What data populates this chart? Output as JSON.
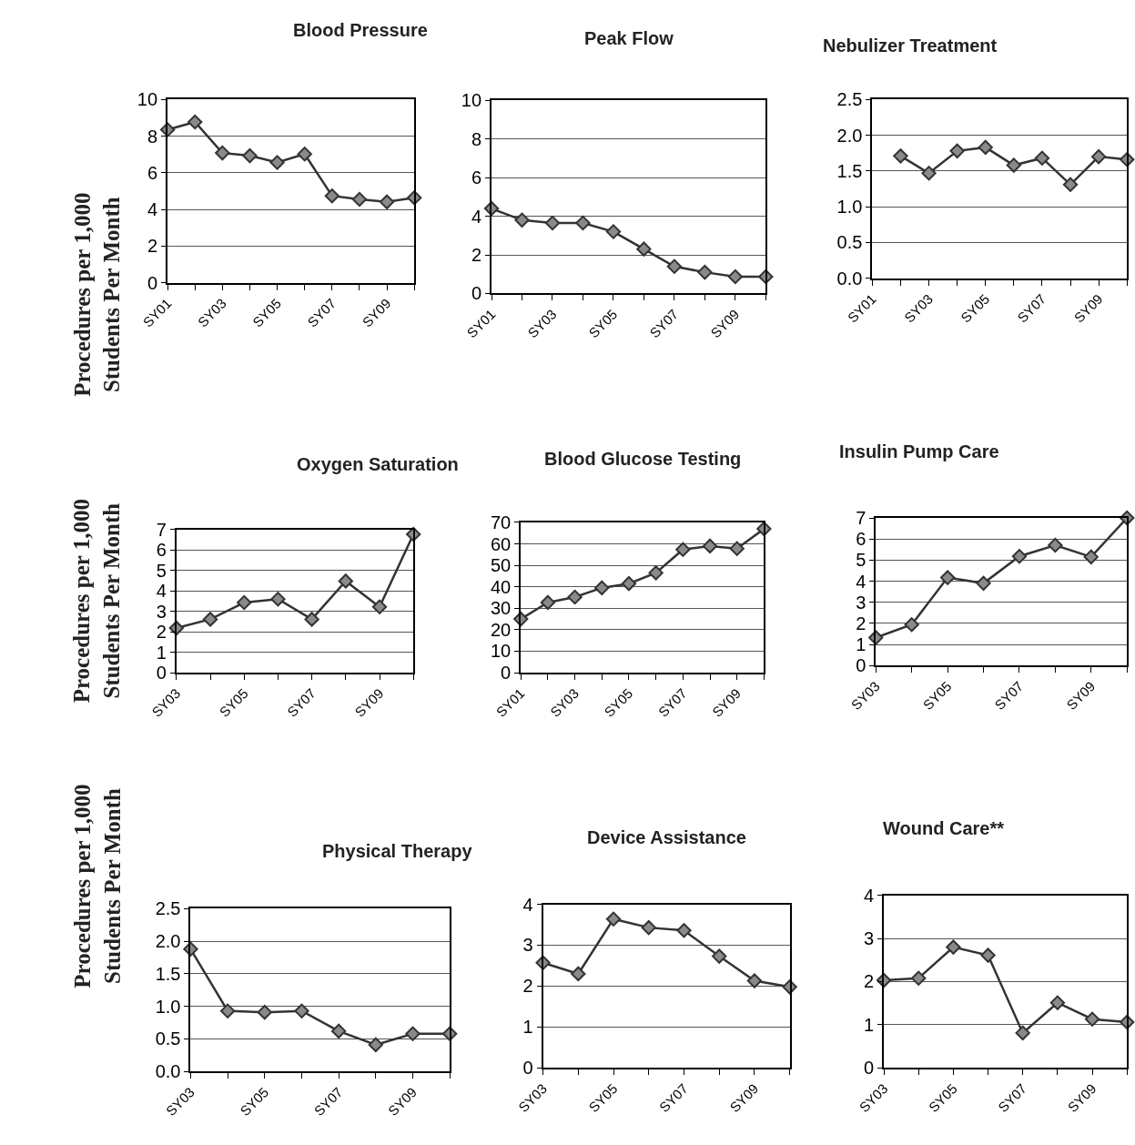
{
  "chart_data": [
    {
      "type": "line",
      "title": "Blood Pressure",
      "ylabel": "Procedures per 1,000\nStudents Per Month",
      "categories": [
        "SY01",
        null,
        "SY03",
        null,
        "SY05",
        null,
        "SY07",
        null,
        "SY09",
        null
      ],
      "values": [
        8.35,
        8.77,
        7.08,
        6.93,
        6.56,
        7.02,
        4.74,
        4.55,
        4.41,
        4.64
      ],
      "color": "#333333",
      "marker": "diamond",
      "grid": "y",
      "ylim": [
        0,
        10
      ],
      "yticks": [
        0,
        2,
        4,
        6,
        8,
        10
      ]
    },
    {
      "type": "line",
      "title": "Peak Flow",
      "categories": [
        "SY01",
        null,
        "SY03",
        null,
        "SY05",
        null,
        "SY07",
        null,
        "SY09",
        null
      ],
      "values": [
        4.4,
        3.8,
        3.65,
        3.65,
        3.2,
        2.3,
        1.4,
        1.1,
        0.87,
        0.87
      ],
      "color": "#333333",
      "marker": "diamond",
      "grid": "y",
      "ylim": [
        0,
        10
      ],
      "yticks": [
        0,
        2,
        4,
        6,
        8,
        10
      ]
    },
    {
      "type": "line",
      "title": "Nebulizer Treatment",
      "categories": [
        "SY01",
        null,
        "SY03",
        null,
        "SY05",
        null,
        "SY07",
        null,
        "SY09",
        null
      ],
      "values": [
        null,
        1.71,
        1.47,
        1.78,
        1.83,
        1.58,
        1.68,
        1.31,
        1.7,
        1.66
      ],
      "color": "#333333",
      "marker": "diamond",
      "grid": "y",
      "ylim": [
        0,
        2.5
      ],
      "yticks": [
        {
          "value": 0,
          "label": "0.0"
        },
        {
          "value": 0.5,
          "label": "0.5"
        },
        {
          "value": 1,
          "label": "1.0"
        },
        {
          "value": 1.5,
          "label": "1.5"
        },
        {
          "value": 2,
          "label": "2.0"
        },
        {
          "value": 2.5,
          "label": "2.5"
        }
      ]
    },
    {
      "type": "line",
      "title": "Oxygen Saturation",
      "ylabel": "Procedures per 1,000\nStudents Per Month",
      "categories": [
        "SY03",
        null,
        "SY05",
        null,
        "SY07",
        null,
        "SY09",
        null
      ],
      "values": [
        2.18,
        2.61,
        3.43,
        3.6,
        2.61,
        4.48,
        3.22,
        6.77
      ],
      "color": "#333333",
      "marker": "diamond",
      "grid": "y",
      "ylim": [
        0,
        7
      ],
      "yticks": [
        0,
        1,
        2,
        3,
        4,
        5,
        6,
        7
      ]
    },
    {
      "type": "line",
      "title": "Blood Glucose Testing",
      "categories": [
        "SY01",
        null,
        "SY03",
        null,
        "SY05",
        null,
        "SY07",
        null,
        "SY09",
        null
      ],
      "values": [
        25,
        32.7,
        35.2,
        39.5,
        41.5,
        46.5,
        57.4,
        59,
        57.8,
        67
      ],
      "color": "#333333",
      "marker": "diamond",
      "grid": "y",
      "ylim": [
        0,
        70
      ],
      "yticks": [
        0,
        10,
        20,
        30,
        40,
        50,
        60,
        70
      ]
    },
    {
      "type": "line",
      "title": "Insulin Pump Care",
      "categories": [
        "SY03",
        null,
        "SY05",
        null,
        "SY07",
        null,
        "SY09",
        null
      ],
      "values": [
        1.32,
        1.94,
        4.17,
        3.9,
        5.18,
        5.71,
        5.15,
        7.0
      ],
      "color": "#333333",
      "marker": "diamond",
      "grid": "y",
      "ylim": [
        0,
        7
      ],
      "yticks": [
        0,
        1,
        2,
        3,
        4,
        5,
        6,
        7
      ]
    },
    {
      "type": "line",
      "title": "Physical Therapy",
      "ylabel": "Procedures per 1,000\nStudents Per Month",
      "categories": [
        "SY03",
        null,
        "SY05",
        null,
        "SY07",
        null,
        "SY09",
        null
      ],
      "values": [
        1.88,
        0.93,
        0.91,
        0.93,
        0.62,
        0.41,
        0.58,
        0.58
      ],
      "color": "#333333",
      "marker": "diamond",
      "grid": "y",
      "ylim": [
        0,
        2.5
      ],
      "yticks": [
        {
          "value": 0,
          "label": "0.0"
        },
        {
          "value": 0.5,
          "label": "0.5"
        },
        {
          "value": 1,
          "label": "1.0"
        },
        {
          "value": 1.5,
          "label": "1.5"
        },
        {
          "value": 2,
          "label": "2.0"
        },
        {
          "value": 2.5,
          "label": "2.5"
        }
      ]
    },
    {
      "type": "line",
      "title": "Device Assistance",
      "categories": [
        "SY03",
        null,
        "SY05",
        null,
        "SY07",
        null,
        "SY09",
        null
      ],
      "values": [
        2.57,
        2.3,
        3.64,
        3.43,
        3.36,
        2.73,
        2.13,
        1.98
      ],
      "color": "#333333",
      "marker": "diamond",
      "grid": "y",
      "ylim": [
        0,
        4
      ],
      "yticks": [
        0,
        1,
        2,
        3,
        4
      ]
    },
    {
      "type": "line",
      "title": "Wound Care**",
      "categories": [
        "SY03",
        null,
        "SY05",
        null,
        "SY07",
        null,
        "SY09",
        null
      ],
      "values": [
        2.03,
        2.08,
        2.8,
        2.61,
        0.81,
        1.51,
        1.13,
        1.06
      ],
      "color": "#333333",
      "marker": "diamond",
      "grid": "y",
      "ylim": [
        0,
        4
      ],
      "yticks": [
        0,
        1,
        2,
        3,
        4
      ]
    }
  ]
}
